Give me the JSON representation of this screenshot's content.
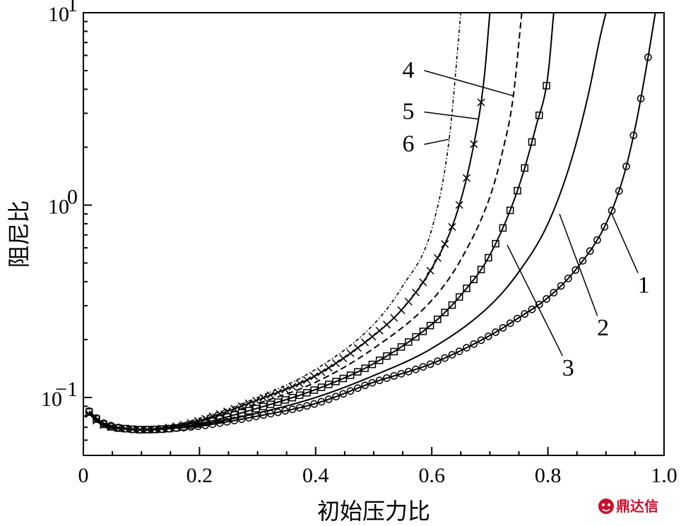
{
  "chart_data": {
    "type": "line",
    "title": "",
    "xlabel": "初始压力比",
    "ylabel": "阻尼比",
    "xlim": [
      0,
      1.0
    ],
    "ylim": [
      0.05,
      10
    ],
    "yscale": "log",
    "grid": false,
    "x_ticks": [
      "0",
      "0.2",
      "0.4",
      "0.6",
      "0.8",
      "1.0"
    ],
    "y_ticks": [
      {
        "base": "10",
        "exp": "−1"
      },
      {
        "base": "10",
        "exp": "0"
      },
      {
        "base": "10",
        "exp": "1"
      }
    ],
    "series": [
      {
        "label": "1",
        "style": "solid-circle",
        "x": [
          0.01,
          0.03,
          0.05,
          0.07,
          0.1,
          0.15,
          0.2,
          0.3,
          0.4,
          0.5,
          0.6,
          0.7,
          0.75,
          0.8,
          0.85,
          0.9,
          0.93,
          0.95,
          0.97,
          0.985
        ],
        "y": [
          0.085,
          0.075,
          0.071,
          0.069,
          0.068,
          0.069,
          0.071,
          0.08,
          0.093,
          0.12,
          0.15,
          0.21,
          0.26,
          0.33,
          0.47,
          0.8,
          1.4,
          2.5,
          5.3,
          10
        ]
      },
      {
        "label": "2",
        "style": "solid",
        "x": [
          0.01,
          0.03,
          0.05,
          0.07,
          0.1,
          0.15,
          0.2,
          0.3,
          0.4,
          0.5,
          0.6,
          0.7,
          0.75,
          0.8,
          0.84,
          0.87,
          0.89,
          0.9
        ],
        "y": [
          0.084,
          0.074,
          0.07,
          0.069,
          0.068,
          0.069,
          0.072,
          0.083,
          0.1,
          0.13,
          0.18,
          0.3,
          0.45,
          0.8,
          1.7,
          3.8,
          7.5,
          10
        ]
      },
      {
        "label": "3",
        "style": "solid-square",
        "x": [
          0.01,
          0.03,
          0.05,
          0.07,
          0.1,
          0.15,
          0.2,
          0.3,
          0.4,
          0.5,
          0.6,
          0.65,
          0.7,
          0.75,
          0.78,
          0.8,
          0.81
        ],
        "y": [
          0.084,
          0.074,
          0.07,
          0.069,
          0.068,
          0.069,
          0.073,
          0.088,
          0.11,
          0.15,
          0.24,
          0.34,
          0.55,
          1.25,
          2.6,
          4.7,
          10
        ]
      },
      {
        "label": "4",
        "style": "dashed",
        "x": [
          0.01,
          0.03,
          0.05,
          0.07,
          0.1,
          0.15,
          0.2,
          0.3,
          0.4,
          0.5,
          0.6,
          0.65,
          0.7,
          0.72,
          0.74,
          0.755
        ],
        "y": [
          0.083,
          0.073,
          0.07,
          0.069,
          0.068,
          0.07,
          0.075,
          0.093,
          0.12,
          0.18,
          0.32,
          0.52,
          1.1,
          1.8,
          3.6,
          10
        ]
      },
      {
        "label": "5",
        "style": "solid-cross",
        "x": [
          0.01,
          0.03,
          0.05,
          0.07,
          0.1,
          0.15,
          0.2,
          0.3,
          0.4,
          0.5,
          0.55,
          0.6,
          0.64,
          0.67,
          0.69,
          0.7
        ],
        "y": [
          0.082,
          0.073,
          0.07,
          0.069,
          0.068,
          0.07,
          0.076,
          0.097,
          0.13,
          0.21,
          0.29,
          0.47,
          0.85,
          1.9,
          4.5,
          10
        ]
      },
      {
        "label": "6",
        "style": "dashdot",
        "x": [
          0.01,
          0.03,
          0.05,
          0.07,
          0.1,
          0.15,
          0.2,
          0.3,
          0.4,
          0.5,
          0.55,
          0.6,
          0.63,
          0.65
        ],
        "y": [
          0.082,
          0.073,
          0.07,
          0.069,
          0.068,
          0.071,
          0.078,
          0.1,
          0.14,
          0.24,
          0.38,
          0.75,
          2.2,
          10
        ]
      }
    ],
    "annotations": [
      {
        "text": "1",
        "point": [
          0.91,
          0.9
        ],
        "label_at": [
          0.96,
          0.35
        ]
      },
      {
        "text": "2",
        "point": [
          0.82,
          0.9
        ],
        "label_at": [
          0.89,
          0.21
        ]
      },
      {
        "text": "3",
        "point": [
          0.73,
          0.62
        ],
        "label_at": [
          0.83,
          0.13
        ]
      },
      {
        "text": "4",
        "point": [
          0.74,
          3.7
        ],
        "label_at": [
          0.57,
          4.6
        ]
      },
      {
        "text": "5",
        "point": [
          0.68,
          2.8
        ],
        "label_at": [
          0.57,
          2.8
        ]
      },
      {
        "text": "6",
        "point": [
          0.63,
          2.2
        ],
        "label_at": [
          0.57,
          1.9
        ]
      }
    ]
  },
  "watermark": {
    "text": "鼎达信",
    "icon": "dingdaxin-logo-icon",
    "color": "#c8102e"
  }
}
